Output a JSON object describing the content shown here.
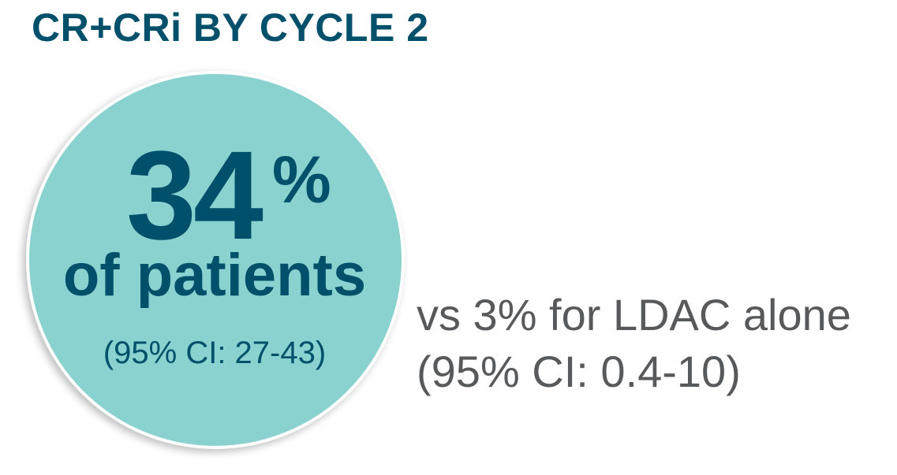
{
  "title": "CR+CRi BY CYCLE 2",
  "main_stat": {
    "value": "34",
    "unit": "%",
    "label": "of patients",
    "ci": "(95% CI: 27-43)"
  },
  "comparison": {
    "line1": "vs 3% for LDAC alone",
    "line2": "(95% CI: 0.4-10)"
  },
  "colors": {
    "accent": "#00506b",
    "circle": "#8ad2cf",
    "gray_text": "#58595b"
  }
}
